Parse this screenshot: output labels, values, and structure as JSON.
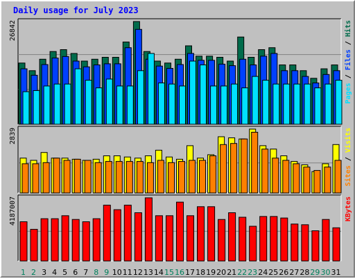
{
  "chart_data": {
    "type": "bar",
    "title": "Daily usage for July 2023",
    "categories": [
      "1",
      "2",
      "3",
      "4",
      "5",
      "6",
      "7",
      "8",
      "9",
      "10",
      "11",
      "12",
      "13",
      "14",
      "15",
      "16",
      "17",
      "18",
      "19",
      "20",
      "21",
      "22",
      "23",
      "24",
      "25",
      "26",
      "27",
      "28",
      "29",
      "30",
      "31"
    ],
    "weekend_days": [
      "1",
      "2",
      "8",
      "9",
      "15",
      "16",
      "22",
      "23",
      "29",
      "30"
    ],
    "panels": [
      {
        "name": "hits-panel",
        "max_label": "26842",
        "ylim": [
          0,
          26842
        ],
        "legend": [
          "Pages",
          "/",
          "Files",
          "/",
          "Hits"
        ],
        "series": [
          {
            "name": "Hits",
            "color": "#006b4b",
            "values": [
              16000,
              14000,
              17000,
              19000,
              19500,
              18500,
              16500,
              17000,
              17500,
              17500,
              21500,
              26842,
              19000,
              16500,
              16000,
              17000,
              20500,
              17800,
              17800,
              17500,
              16500,
              22800,
              17500,
              19500,
              20000,
              15500,
              15500,
              14000,
              12000,
              14500,
              15500
            ]
          },
          {
            "name": "Files",
            "color": "#0040ff",
            "values": [
              14500,
              12800,
              15600,
              17300,
              17700,
              16500,
              15000,
              15500,
              15800,
              15800,
              20000,
              24800,
              17000,
              15200,
              14600,
              15600,
              18500,
              16700,
              16700,
              15700,
              15300,
              17000,
              15500,
              17800,
              18500,
              14000,
              14000,
              12500,
              10800,
              13000,
              14000
            ]
          },
          {
            "name": "Pages",
            "color": "#00e0ff",
            "values": [
              8500,
              8800,
              10000,
              10500,
              10500,
              14500,
              11500,
              9500,
              11800,
              10000,
              10000,
              14000,
              18500,
              10800,
              10500,
              10000,
              16500,
              15500,
              10000,
              10000,
              10500,
              9500,
              12500,
              11500,
              10500,
              10500,
              10500,
              10500,
              9500,
              10500,
              11500
            ]
          }
        ]
      },
      {
        "name": "visits-panel",
        "max_label": "2839",
        "ylim": [
          0,
          2839
        ],
        "legend": [
          "Sites",
          "/",
          "Visits"
        ],
        "series": [
          {
            "name": "Visits",
            "color": "#ffff00",
            "values": [
              1550,
              1450,
              1800,
              1550,
              1550,
              1500,
              1450,
              1500,
              1650,
              1650,
              1600,
              1550,
              1650,
              1900,
              1600,
              1500,
              2100,
              1550,
              1700,
              2500,
              2450,
              2400,
              2839,
              2100,
              1950,
              1650,
              1400,
              1250,
              950,
              1300,
              2150
            ]
          },
          {
            "name": "Sites",
            "color": "#ff8000",
            "values": [
              1300,
              1300,
              1350,
              1550,
              1450,
              1500,
              1450,
              1350,
              1400,
              1400,
              1400,
              1400,
              1350,
              1450,
              1350,
              1400,
              1450,
              1450,
              1650,
              2150,
              2200,
              2400,
              2700,
              1950,
              1550,
              1450,
              1300,
              1150,
              1000,
              1150,
              1450
            ]
          }
        ]
      },
      {
        "name": "kbytes-panel",
        "max_label": "4187007",
        "ylim": [
          0,
          4187007
        ],
        "legend": [
          "KBytes"
        ],
        "series": [
          {
            "name": "KBytes",
            "color": "#ff0000",
            "values": [
              2600000,
              2100000,
              2800000,
              2800000,
              3000000,
              2750000,
              2600000,
              2800000,
              3700000,
              3400000,
              3700000,
              3200000,
              4187007,
              3000000,
              3000000,
              3900000,
              3000000,
              3600000,
              3600000,
              2750000,
              3200000,
              2900000,
              2300000,
              2950000,
              2950000,
              2850000,
              2450000,
              2400000,
              2000000,
              2750000,
              2200000
            ]
          }
        ]
      }
    ]
  },
  "colors": {
    "background": "#c0c0c0",
    "plot_background": "#c0c0c0",
    "title": "#0000ff",
    "weekday_label": "#000000",
    "weekend_label": "#00805c",
    "legend_slash": "#000000",
    "gridline": "#808080"
  }
}
